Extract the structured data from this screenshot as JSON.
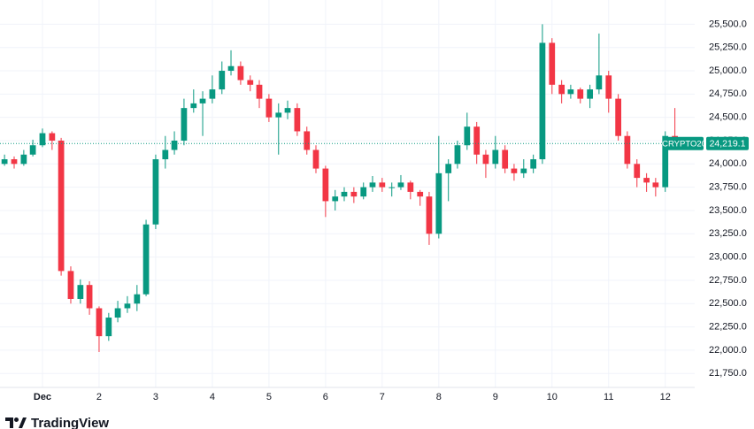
{
  "chart_data": {
    "type": "candlestick",
    "symbol": "CRYPTO20",
    "branding": "TradingView",
    "up_color": "#089981",
    "down_color": "#f23645",
    "grid": true,
    "xlim": [
      0.25,
      12.52
    ],
    "xticks": [
      {
        "value": 1,
        "label": "Dec"
      },
      2,
      3,
      4,
      5,
      6,
      7,
      8,
      9,
      10,
      11,
      12
    ],
    "ylim": [
      21600,
      25760
    ],
    "yticks": [
      {
        "value": 21750,
        "label": "21,750.0"
      },
      {
        "value": 22000,
        "label": "22,000.0"
      },
      {
        "value": 22250,
        "label": "22,250.0"
      },
      {
        "value": 22500,
        "label": "22,500.0"
      },
      {
        "value": 22750,
        "label": "22,750.0"
      },
      {
        "value": 23000,
        "label": "23,000.0"
      },
      {
        "value": 23250,
        "label": "23,250.0"
      },
      {
        "value": 23500,
        "label": "23,500.0"
      },
      {
        "value": 23750,
        "label": "23,750.0"
      },
      {
        "value": 24000,
        "label": "24,000.0"
      },
      {
        "value": 24250,
        "label": "24,250.0"
      },
      {
        "value": 24500,
        "label": "24,500.0"
      },
      {
        "value": 24750,
        "label": "24,750.0"
      },
      {
        "value": 25000,
        "label": "25,000.0"
      },
      {
        "value": 25250,
        "label": "25,250.0"
      },
      {
        "value": 25500,
        "label": "25,500.0"
      }
    ],
    "last_price": {
      "value": 24219.1,
      "label": "24,219.1"
    },
    "x": [
      0.33,
      0.5,
      0.67,
      0.83,
      1,
      1.17,
      1.33,
      1.5,
      1.67,
      1.83,
      2,
      2.17,
      2.33,
      2.5,
      2.67,
      2.83,
      3,
      3.17,
      3.33,
      3.5,
      3.67,
      3.83,
      4,
      4.17,
      4.33,
      4.5,
      4.67,
      4.83,
      5,
      5.17,
      5.33,
      5.5,
      5.67,
      5.83,
      6,
      6.17,
      6.33,
      6.5,
      6.67,
      6.83,
      7,
      7.17,
      7.33,
      7.5,
      7.67,
      7.83,
      8,
      8.17,
      8.33,
      8.5,
      8.67,
      8.83,
      9,
      9.17,
      9.33,
      9.5,
      9.67,
      9.83,
      10,
      10.17,
      10.33,
      10.5,
      10.67,
      10.83,
      11,
      11.17,
      11.33,
      11.5,
      11.67,
      11.83,
      12,
      12.17
    ],
    "open": [
      24000,
      24050,
      24000,
      24100,
      24200,
      24330,
      24250,
      22850,
      22550,
      22700,
      22450,
      22150,
      22350,
      22450,
      22500,
      22600,
      23350,
      24050,
      24150,
      24250,
      24600,
      24650,
      24700,
      24800,
      25000,
      25050,
      24900,
      24850,
      24700,
      24500,
      24550,
      24600,
      24350,
      24150,
      23950,
      23600,
      23650,
      23700,
      23650,
      23750,
      23800,
      23750,
      23750,
      23800,
      23700,
      23650,
      23250,
      23900,
      24000,
      24200,
      24400,
      24100,
      24000,
      24150,
      23950,
      23900,
      23950,
      24050,
      25300,
      24850,
      24750,
      24800,
      24700,
      24800,
      24950,
      24700,
      24300,
      24000,
      23850,
      23800,
      23750,
      24300
    ],
    "high": [
      24100,
      24080,
      24150,
      24260,
      24380,
      24350,
      24280,
      22900,
      22760,
      22740,
      22470,
      22400,
      22530,
      22580,
      22700,
      23400,
      24100,
      24300,
      24350,
      24700,
      24800,
      24780,
      24950,
      25100,
      25220,
      25100,
      24950,
      24900,
      24750,
      24650,
      24680,
      24650,
      24400,
      24200,
      23980,
      23720,
      23750,
      23750,
      23800,
      23870,
      23850,
      23800,
      23880,
      23820,
      23720,
      23700,
      24300,
      24050,
      24250,
      24550,
      24450,
      24150,
      24300,
      24200,
      24000,
      24050,
      24100,
      25500,
      25350,
      24900,
      24850,
      24820,
      24850,
      25400,
      25000,
      24750,
      24350,
      24050,
      23900,
      23850,
      24350,
      24600
    ],
    "low": [
      23980,
      23950,
      23980,
      24080,
      24180,
      24150,
      22800,
      22500,
      22500,
      22380,
      21980,
      22100,
      22300,
      22400,
      22420,
      22580,
      23300,
      23950,
      24100,
      24200,
      24550,
      24300,
      24650,
      24750,
      24950,
      24850,
      24780,
      24600,
      24450,
      24100,
      24480,
      24300,
      24100,
      23900,
      23430,
      23500,
      23600,
      23580,
      23620,
      23700,
      23700,
      23650,
      23720,
      23620,
      23550,
      23130,
      23200,
      23600,
      23950,
      24150,
      24000,
      23850,
      23950,
      23900,
      23820,
      23850,
      23900,
      24000,
      24750,
      24650,
      24700,
      24650,
      24600,
      24750,
      24550,
      24250,
      23950,
      23750,
      23700,
      23650,
      23700,
      24150
    ],
    "close": [
      24050,
      24000,
      24100,
      24200,
      24330,
      24250,
      22850,
      22550,
      22700,
      22450,
      22150,
      22350,
      22450,
      22500,
      22600,
      23350,
      24050,
      24150,
      24250,
      24600,
      24650,
      24700,
      24800,
      25000,
      25050,
      24900,
      24850,
      24700,
      24500,
      24550,
      24600,
      24350,
      24150,
      23950,
      23600,
      23650,
      23700,
      23650,
      23750,
      23800,
      23750,
      23750,
      23800,
      23700,
      23650,
      23250,
      23900,
      24000,
      24200,
      24400,
      24100,
      24000,
      24150,
      23950,
      23900,
      23950,
      24050,
      25300,
      24850,
      24750,
      24800,
      24700,
      24800,
      24950,
      24700,
      24300,
      24000,
      23850,
      23800,
      23750,
      24300,
      24219.1
    ]
  }
}
